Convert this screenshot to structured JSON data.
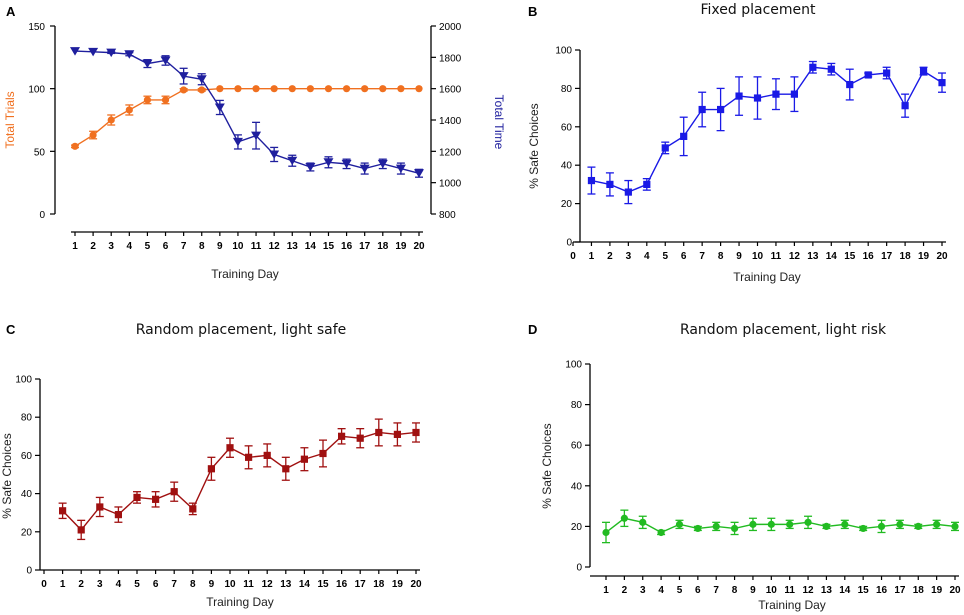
{
  "chart_data": [
    {
      "panel": "A",
      "type": "line",
      "title": "",
      "xlabel": "Training Day",
      "ylabel_left": "Total Trials",
      "ylabel_right": "Total Time",
      "ylim_left": [
        0,
        150
      ],
      "ylim_right": [
        800,
        2000
      ],
      "yticks_left": [
        0,
        50,
        100,
        150
      ],
      "yticks_right": [
        800,
        1000,
        1200,
        1400,
        1600,
        1800,
        2000
      ],
      "x": [
        1,
        2,
        3,
        4,
        5,
        6,
        7,
        8,
        9,
        10,
        11,
        12,
        13,
        14,
        15,
        16,
        17,
        18,
        19,
        20
      ],
      "series": [
        {
          "name": "Total Trials",
          "axis": "left",
          "color": "#f07020",
          "marker": "circle",
          "values": [
            54,
            63,
            75,
            83,
            91,
            91,
            99,
            99,
            100,
            100,
            100,
            100,
            100,
            100,
            100,
            100,
            100,
            100,
            100,
            100
          ],
          "errors": [
            1,
            3,
            4,
            4,
            3,
            3,
            1,
            1,
            0,
            0,
            0,
            0,
            0,
            0,
            0,
            0,
            0,
            0,
            0,
            0
          ]
        },
        {
          "name": "Total Time",
          "axis": "right",
          "color": "#1f1f9e",
          "marker": "triangle-down",
          "values": [
            1840,
            1835,
            1830,
            1820,
            1760,
            1780,
            1680,
            1660,
            1480,
            1260,
            1300,
            1180,
            1140,
            1100,
            1130,
            1120,
            1090,
            1120,
            1090,
            1060
          ],
          "errors": [
            0,
            0,
            5,
            10,
            25,
            30,
            50,
            35,
            45,
            45,
            85,
            45,
            35,
            25,
            35,
            30,
            35,
            30,
            35,
            25
          ]
        }
      ]
    },
    {
      "panel": "B",
      "type": "line",
      "title": "Fixed placement",
      "xlabel": "Training Day",
      "ylabel": "% Safe Choices",
      "ylim": [
        0,
        100
      ],
      "yticks": [
        0,
        20,
        40,
        60,
        80,
        100
      ],
      "xticks": [
        0,
        1,
        2,
        3,
        4,
        5,
        6,
        7,
        8,
        9,
        10,
        11,
        12,
        13,
        14,
        15,
        16,
        17,
        18,
        19,
        20
      ],
      "x": [
        1,
        2,
        3,
        4,
        5,
        6,
        7,
        8,
        9,
        10,
        11,
        12,
        13,
        14,
        15,
        16,
        17,
        18,
        19,
        20
      ],
      "series": [
        {
          "name": "% Safe Choices",
          "color": "#1a1ae6",
          "marker": "square",
          "values": [
            32,
            30,
            26,
            30,
            49,
            55,
            69,
            69,
            76,
            75,
            77,
            77,
            91,
            90,
            82,
            87,
            88,
            71,
            89,
            83
          ],
          "errors": [
            7,
            6,
            6,
            3,
            3,
            10,
            9,
            11,
            10,
            11,
            8,
            9,
            3,
            3,
            8,
            1,
            3,
            6,
            2,
            5
          ]
        }
      ]
    },
    {
      "panel": "C",
      "type": "line",
      "title": "Random placement, light safe",
      "xlabel": "Training Day",
      "ylabel": "% Safe Choices",
      "ylim": [
        0,
        100
      ],
      "yticks": [
        0,
        20,
        40,
        60,
        80,
        100
      ],
      "xticks": [
        0,
        1,
        2,
        3,
        4,
        5,
        6,
        7,
        8,
        9,
        10,
        11,
        12,
        13,
        14,
        15,
        16,
        17,
        18,
        19,
        20
      ],
      "x": [
        1,
        2,
        3,
        4,
        5,
        6,
        7,
        8,
        9,
        10,
        11,
        12,
        13,
        14,
        15,
        16,
        17,
        18,
        19,
        20
      ],
      "series": [
        {
          "name": "% Safe Choices",
          "color": "#a01010",
          "marker": "square",
          "values": [
            31,
            21,
            33,
            29,
            38,
            37,
            41,
            32,
            53,
            64,
            59,
            60,
            53,
            58,
            61,
            70,
            69,
            72,
            71,
            72
          ],
          "errors": [
            4,
            5,
            5,
            4,
            3,
            4,
            5,
            3,
            6,
            5,
            6,
            6,
            6,
            6,
            7,
            4,
            5,
            7,
            6,
            5
          ]
        }
      ]
    },
    {
      "panel": "D",
      "type": "line",
      "title": "Random placement, light risk",
      "xlabel": "Training Day",
      "ylabel": "% Safe Choices",
      "ylim": [
        0,
        100
      ],
      "yticks": [
        0,
        20,
        40,
        60,
        80,
        100
      ],
      "xticks": [
        1,
        2,
        3,
        4,
        5,
        6,
        7,
        8,
        9,
        10,
        11,
        12,
        13,
        14,
        15,
        16,
        17,
        18,
        19,
        20
      ],
      "x": [
        1,
        2,
        3,
        4,
        5,
        6,
        7,
        8,
        9,
        10,
        11,
        12,
        13,
        14,
        15,
        16,
        17,
        18,
        19,
        20
      ],
      "series": [
        {
          "name": "% Safe Choices",
          "color": "#22bb22",
          "marker": "circle",
          "values": [
            17,
            24,
            22,
            17,
            21,
            19,
            20,
            19,
            21,
            21,
            21,
            22,
            20,
            21,
            19,
            20,
            21,
            20,
            21,
            20
          ],
          "errors": [
            5,
            4,
            3,
            1,
            2,
            1,
            2,
            3,
            3,
            3,
            2,
            3,
            1,
            2,
            1,
            3,
            2,
            1,
            2,
            2
          ]
        }
      ]
    }
  ]
}
